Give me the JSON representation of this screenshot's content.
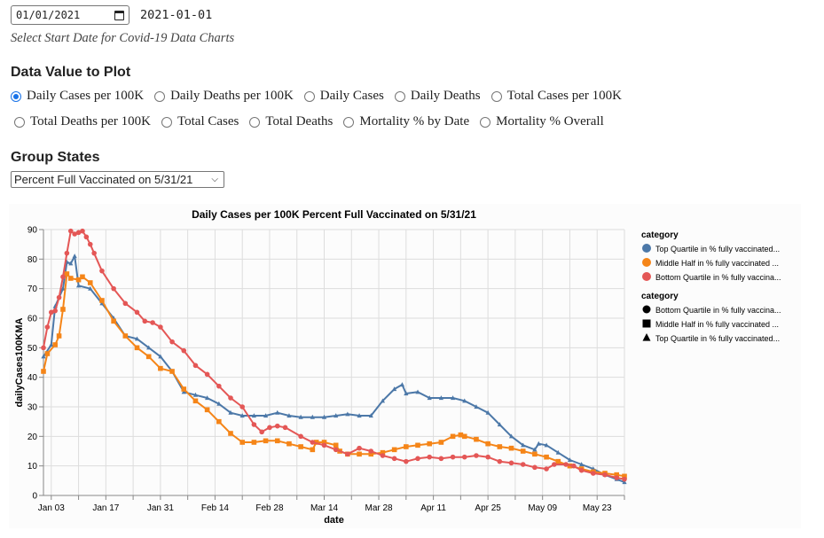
{
  "date_picker": {
    "value": "01/01/2021",
    "echo": "2021-01-01",
    "caption": "Select Start Date for Covid-19 Data Charts"
  },
  "data_value": {
    "heading": "Data Value to Plot",
    "options_row1": [
      "Daily Cases per 100K",
      "Daily Deaths per 100K",
      "Daily Cases",
      "Daily Deaths",
      "Total Cases per 100K"
    ],
    "options_row2": [
      "Total Deaths per 100K",
      "Total Cases",
      "Total Deaths",
      "Mortality % by Date",
      "Mortality % Overall"
    ],
    "selected": "Daily Cases per 100K"
  },
  "group_states": {
    "heading": "Group States",
    "selected": "Percent Full Vaccinated on 5/31/21"
  },
  "chart_data": {
    "type": "line",
    "title": "Daily Cases per 100K Percent Full Vaccinated on 5/31/21",
    "xlabel": "date",
    "ylabel": "dailyCases100KMA",
    "ylim": [
      0,
      90
    ],
    "yticks": [
      0,
      10,
      20,
      30,
      40,
      50,
      60,
      70,
      80,
      90
    ],
    "x_start": "2021-01-01",
    "x_unit": "days since x_start",
    "xlim": [
      0,
      149
    ],
    "xticks": [
      {
        "day": 2,
        "label": "Jan 03"
      },
      {
        "day": 16,
        "label": "Jan 17"
      },
      {
        "day": 30,
        "label": "Jan 31"
      },
      {
        "day": 44,
        "label": "Feb 14"
      },
      {
        "day": 58,
        "label": "Feb 28"
      },
      {
        "day": 72,
        "label": "Mar 14"
      },
      {
        "day": 86,
        "label": "Mar 28"
      },
      {
        "day": 100,
        "label": "Apr 11"
      },
      {
        "day": 114,
        "label": "Apr 25"
      },
      {
        "day": 128,
        "label": "May 09"
      },
      {
        "day": 142,
        "label": "May 23"
      }
    ],
    "grid": true,
    "legend_position": "right",
    "legend_color_title": "category",
    "legend_shape_title": "category",
    "legend_color": [
      {
        "label": "Top Quartile in % fully vaccinated...",
        "color": "#4c78a8"
      },
      {
        "label": "Middle Half in % fully vaccinated ...",
        "color": "#f58518"
      },
      {
        "label": "Bottom Quartile in % fully vaccina...",
        "color": "#e45756"
      }
    ],
    "legend_shape": [
      {
        "label": "Bottom Quartile in % fully vaccina...",
        "shape": "circle"
      },
      {
        "label": "Middle Half in % fully vaccinated ...",
        "shape": "square"
      },
      {
        "label": "Top Quartile in % fully vaccinated...",
        "shape": "triangle"
      }
    ],
    "series": [
      {
        "name": "Top Quartile in % fully vaccinated",
        "color": "#4c78a8",
        "shape": "triangle",
        "points": [
          [
            0,
            47
          ],
          [
            2,
            51
          ],
          [
            3,
            64
          ],
          [
            5,
            70
          ],
          [
            6,
            79
          ],
          [
            7,
            78.5
          ],
          [
            8,
            81
          ],
          [
            9,
            71
          ],
          [
            12,
            70
          ],
          [
            15,
            65
          ],
          [
            18,
            60
          ],
          [
            21,
            54
          ],
          [
            24,
            53
          ],
          [
            27,
            50
          ],
          [
            30,
            47
          ],
          [
            33,
            42
          ],
          [
            36,
            35
          ],
          [
            39,
            34
          ],
          [
            42,
            33
          ],
          [
            45,
            31
          ],
          [
            48,
            28
          ],
          [
            51,
            27
          ],
          [
            54,
            27
          ],
          [
            57,
            27
          ],
          [
            60,
            28
          ],
          [
            63,
            27
          ],
          [
            66,
            26.5
          ],
          [
            69,
            26.5
          ],
          [
            72,
            26.5
          ],
          [
            75,
            27
          ],
          [
            78,
            27.5
          ],
          [
            81,
            27
          ],
          [
            84,
            27
          ],
          [
            87,
            32
          ],
          [
            90,
            36
          ],
          [
            92,
            37.5
          ],
          [
            93,
            34.5
          ],
          [
            96,
            35
          ],
          [
            99,
            33
          ],
          [
            102,
            33
          ],
          [
            105,
            33
          ],
          [
            108,
            32
          ],
          [
            111,
            30
          ],
          [
            114,
            28
          ],
          [
            117,
            24
          ],
          [
            120,
            20
          ],
          [
            123,
            17
          ],
          [
            126,
            15.5
          ],
          [
            127,
            17.5
          ],
          [
            129,
            17
          ],
          [
            132,
            14.5
          ],
          [
            135,
            12
          ],
          [
            138,
            10.5
          ],
          [
            141,
            9
          ],
          [
            144,
            7
          ],
          [
            147,
            5.5
          ],
          [
            149,
            4.5
          ]
        ]
      },
      {
        "name": "Middle Half in % fully vaccinated",
        "color": "#f58518",
        "shape": "square",
        "points": [
          [
            0,
            42
          ],
          [
            1,
            48
          ],
          [
            3,
            51
          ],
          [
            4,
            54
          ],
          [
            5,
            63
          ],
          [
            6,
            75
          ],
          [
            7,
            73.5
          ],
          [
            9,
            73
          ],
          [
            10,
            74
          ],
          [
            12,
            72
          ],
          [
            15,
            66
          ],
          [
            18,
            59
          ],
          [
            21,
            54
          ],
          [
            24,
            50
          ],
          [
            27,
            47
          ],
          [
            30,
            43
          ],
          [
            33,
            42
          ],
          [
            36,
            36
          ],
          [
            39,
            32
          ],
          [
            42,
            29
          ],
          [
            45,
            25
          ],
          [
            48,
            21
          ],
          [
            51,
            18
          ],
          [
            54,
            18
          ],
          [
            57,
            18.5
          ],
          [
            60,
            18.5
          ],
          [
            63,
            17.5
          ],
          [
            66,
            16.5
          ],
          [
            69,
            15.5
          ],
          [
            70,
            18
          ],
          [
            72,
            18
          ],
          [
            75,
            17
          ],
          [
            76,
            15
          ],
          [
            78,
            14
          ],
          [
            81,
            14
          ],
          [
            84,
            14
          ],
          [
            87,
            14.5
          ],
          [
            90,
            15.5
          ],
          [
            93,
            16.5
          ],
          [
            96,
            17
          ],
          [
            99,
            17.5
          ],
          [
            102,
            18
          ],
          [
            105,
            20
          ],
          [
            107,
            20.5
          ],
          [
            108,
            20
          ],
          [
            111,
            19
          ],
          [
            114,
            17.5
          ],
          [
            117,
            16.5
          ],
          [
            120,
            16
          ],
          [
            123,
            15
          ],
          [
            126,
            14
          ],
          [
            129,
            13
          ],
          [
            132,
            11.5
          ],
          [
            135,
            10
          ],
          [
            138,
            9
          ],
          [
            141,
            8
          ],
          [
            144,
            7.5
          ],
          [
            147,
            7
          ],
          [
            149,
            6.5
          ]
        ]
      },
      {
        "name": "Bottom Quartile in % fully vaccinated",
        "color": "#e45756",
        "shape": "circle",
        "points": [
          [
            0,
            50
          ],
          [
            1,
            57
          ],
          [
            2,
            62
          ],
          [
            3,
            62.5
          ],
          [
            4,
            67
          ],
          [
            5,
            74
          ],
          [
            6,
            82
          ],
          [
            7,
            89.5
          ],
          [
            8,
            88.5
          ],
          [
            9,
            89
          ],
          [
            10,
            89.5
          ],
          [
            11,
            87.5
          ],
          [
            12,
            85
          ],
          [
            13,
            82
          ],
          [
            15,
            76
          ],
          [
            18,
            70
          ],
          [
            21,
            65
          ],
          [
            24,
            62
          ],
          [
            26,
            59
          ],
          [
            28,
            58.5
          ],
          [
            30,
            57
          ],
          [
            33,
            52
          ],
          [
            36,
            49
          ],
          [
            39,
            44
          ],
          [
            42,
            41
          ],
          [
            45,
            37
          ],
          [
            48,
            33
          ],
          [
            51,
            30
          ],
          [
            54,
            24
          ],
          [
            56,
            21.5
          ],
          [
            58,
            23
          ],
          [
            60,
            23.5
          ],
          [
            62,
            23
          ],
          [
            66,
            20
          ],
          [
            69,
            18
          ],
          [
            72,
            17
          ],
          [
            75,
            15.5
          ],
          [
            78,
            14
          ],
          [
            81,
            16
          ],
          [
            84,
            15
          ],
          [
            87,
            13.5
          ],
          [
            90,
            12.5
          ],
          [
            93,
            11.5
          ],
          [
            96,
            12.5
          ],
          [
            99,
            13
          ],
          [
            102,
            12.5
          ],
          [
            105,
            13
          ],
          [
            108,
            13
          ],
          [
            111,
            13.5
          ],
          [
            114,
            13
          ],
          [
            117,
            11.5
          ],
          [
            120,
            11
          ],
          [
            123,
            10.5
          ],
          [
            126,
            9.5
          ],
          [
            129,
            9
          ],
          [
            131,
            10.5
          ],
          [
            134,
            10.5
          ],
          [
            136,
            10
          ],
          [
            138,
            8.5
          ],
          [
            141,
            7.5
          ],
          [
            144,
            7
          ],
          [
            147,
            6
          ],
          [
            149,
            5.5
          ]
        ]
      }
    ]
  }
}
